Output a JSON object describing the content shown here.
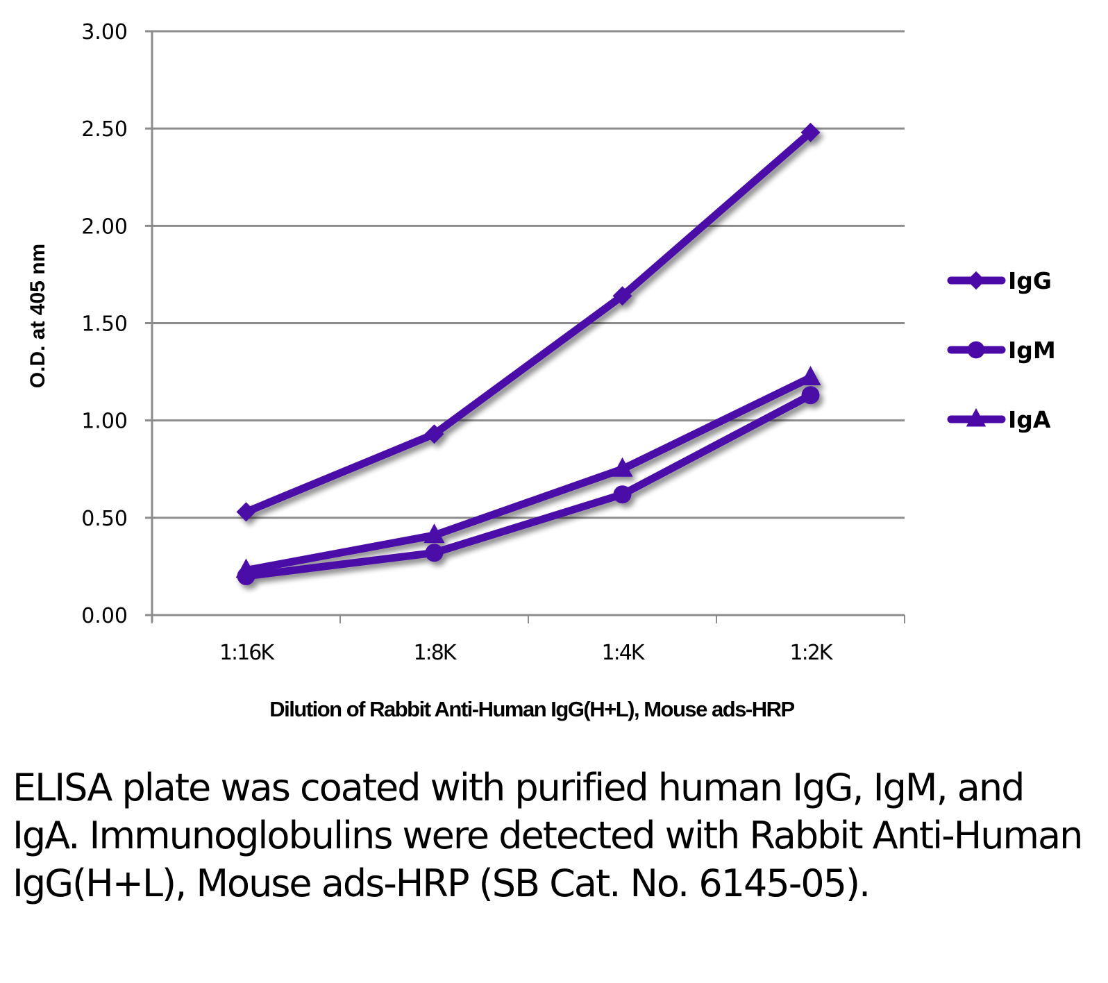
{
  "chart_data": {
    "type": "line",
    "title": "",
    "xlabel": "Dilution of Rabbit Anti-Human IgG(H+L), Mouse ads-HRP",
    "ylabel": "O.D. at 405 nm",
    "categories": [
      "1:16K",
      "1:8K",
      "1:4K",
      "1:2K"
    ],
    "ylim": [
      0,
      3
    ],
    "yticks": [
      "0.00",
      "0.50",
      "1.00",
      "1.50",
      "2.00",
      "2.50",
      "3.00"
    ],
    "ytick_values": [
      0,
      0.5,
      1.0,
      1.5,
      2.0,
      2.5,
      3.0
    ],
    "grid": true,
    "legend_position": "right",
    "series": [
      {
        "name": "IgG",
        "marker": "diamond",
        "values": [
          0.53,
          0.93,
          1.64,
          2.48
        ]
      },
      {
        "name": "IgM",
        "marker": "circle",
        "values": [
          0.2,
          0.32,
          0.62,
          1.13
        ]
      },
      {
        "name": "IgA",
        "marker": "triangle",
        "values": [
          0.23,
          0.41,
          0.75,
          1.22
        ]
      }
    ],
    "colors": {
      "series": "#4b0aa8",
      "grid": "#8c8c8c",
      "axis": "#8c8c8c"
    }
  },
  "caption": "ELISA plate was coated with purified human IgG, IgM, and IgA.  Immunoglobulins were detected with Rabbit Anti-Human IgG(H+L), Mouse ads-HRP (SB Cat. No. 6145-05)."
}
